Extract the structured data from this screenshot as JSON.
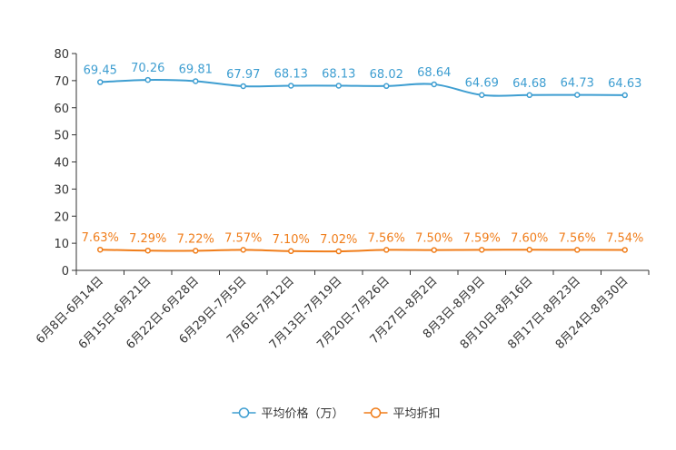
{
  "chart_data": {
    "type": "line",
    "title": "",
    "xlabel": "",
    "ylabel": "",
    "ylim": [
      0,
      80
    ],
    "yticks": [
      0,
      10,
      20,
      30,
      40,
      50,
      60,
      70,
      80
    ],
    "categories": [
      "6月8日-6月14日",
      "6月15日-6月21日",
      "6月22日-6月28日",
      "6月29日-7月5日",
      "7月6日-7月12日",
      "7月13日-7月19日",
      "7月20日-7月26日",
      "7月27日-8月2日",
      "8月3日-8月9日",
      "8月10日-8月16日",
      "8月17日-8月23日",
      "8月24日-8月30日"
    ],
    "series": [
      {
        "name": "平均价格（万）",
        "color": "#3e9ed1",
        "values": [
          69.45,
          70.26,
          69.81,
          67.97,
          68.13,
          68.13,
          68.02,
          68.64,
          64.69,
          64.68,
          64.73,
          64.63
        ],
        "labels": [
          "69.45",
          "70.26",
          "69.81",
          "67.97",
          "68.13",
          "68.13",
          "68.02",
          "68.64",
          "64.69",
          "64.68",
          "64.73",
          "64.63"
        ]
      },
      {
        "name": "平均折扣",
        "color": "#f07d1a",
        "values": [
          7.63,
          7.29,
          7.22,
          7.57,
          7.1,
          7.02,
          7.56,
          7.5,
          7.59,
          7.6,
          7.56,
          7.54
        ],
        "labels": [
          "7.63%",
          "7.29%",
          "7.22%",
          "7.57%",
          "7.10%",
          "7.02%",
          "7.56%",
          "7.50%",
          "7.59%",
          "7.60%",
          "7.56%",
          "7.54%"
        ]
      }
    ],
    "legend_position": "bottom"
  }
}
